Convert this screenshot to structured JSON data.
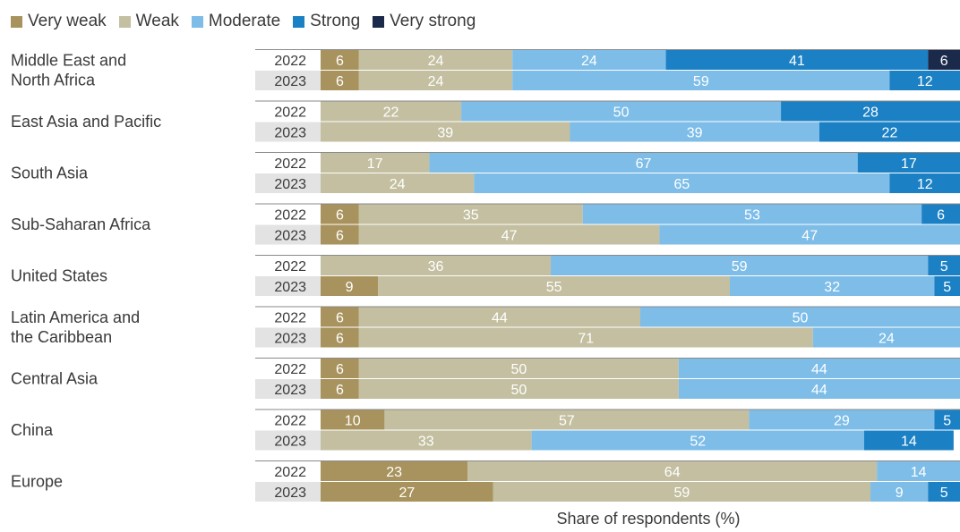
{
  "chart_data": {
    "type": "bar",
    "orientation": "horizontal",
    "stacked": true,
    "xlabel": "Share of respondents (%)",
    "legend_position": "top-left",
    "series_names": [
      "Very weak",
      "Weak",
      "Moderate",
      "Strong",
      "Very strong"
    ],
    "colors": {
      "Very weak": "#a8935e",
      "Weak": "#c3bfa0",
      "Moderate": "#7dbde8",
      "Strong": "#1b80c4",
      "Very strong": "#1b2a4a"
    },
    "groups": [
      {
        "region": [
          "Middle East and",
          "North Africa"
        ],
        "rows": [
          {
            "year": "2022",
            "values": [
              6,
              24,
              24,
              41,
              6
            ]
          },
          {
            "year": "2023",
            "values": [
              6,
              24,
              59,
              12,
              0
            ]
          }
        ]
      },
      {
        "region": [
          "East Asia and Pacific"
        ],
        "rows": [
          {
            "year": "2022",
            "values": [
              0,
              22,
              50,
              28,
              0
            ]
          },
          {
            "year": "2023",
            "values": [
              0,
              39,
              39,
              22,
              0
            ]
          }
        ]
      },
      {
        "region": [
          "South Asia"
        ],
        "rows": [
          {
            "year": "2022",
            "values": [
              0,
              17,
              67,
              17,
              0
            ]
          },
          {
            "year": "2023",
            "values": [
              0,
              24,
              65,
              12,
              0
            ]
          }
        ]
      },
      {
        "region": [
          "Sub-Saharan Africa"
        ],
        "rows": [
          {
            "year": "2022",
            "values": [
              6,
              35,
              53,
              6,
              0
            ]
          },
          {
            "year": "2023",
            "values": [
              6,
              47,
              47,
              0,
              0
            ]
          }
        ]
      },
      {
        "region": [
          "United States"
        ],
        "rows": [
          {
            "year": "2022",
            "values": [
              0,
              36,
              59,
              5,
              0
            ]
          },
          {
            "year": "2023",
            "values": [
              9,
              55,
              32,
              5,
              0
            ]
          }
        ]
      },
      {
        "region": [
          "Latin America and",
          "the Caribbean"
        ],
        "rows": [
          {
            "year": "2022",
            "values": [
              6,
              44,
              50,
              0,
              0
            ]
          },
          {
            "year": "2023",
            "values": [
              6,
              71,
              24,
              0,
              0
            ]
          }
        ]
      },
      {
        "region": [
          "Central Asia"
        ],
        "rows": [
          {
            "year": "2022",
            "values": [
              6,
              50,
              44,
              0,
              0
            ]
          },
          {
            "year": "2023",
            "values": [
              6,
              50,
              44,
              0,
              0
            ]
          }
        ]
      },
      {
        "region": [
          "China"
        ],
        "rows": [
          {
            "year": "2022",
            "values": [
              10,
              57,
              29,
              5,
              0
            ]
          },
          {
            "year": "2023",
            "values": [
              0,
              33,
              52,
              14,
              0
            ]
          }
        ]
      },
      {
        "region": [
          "Europe"
        ],
        "rows": [
          {
            "year": "2022",
            "values": [
              23,
              64,
              14,
              0,
              0
            ]
          },
          {
            "year": "2023",
            "values": [
              27,
              59,
              9,
              5,
              0
            ]
          }
        ]
      }
    ]
  }
}
